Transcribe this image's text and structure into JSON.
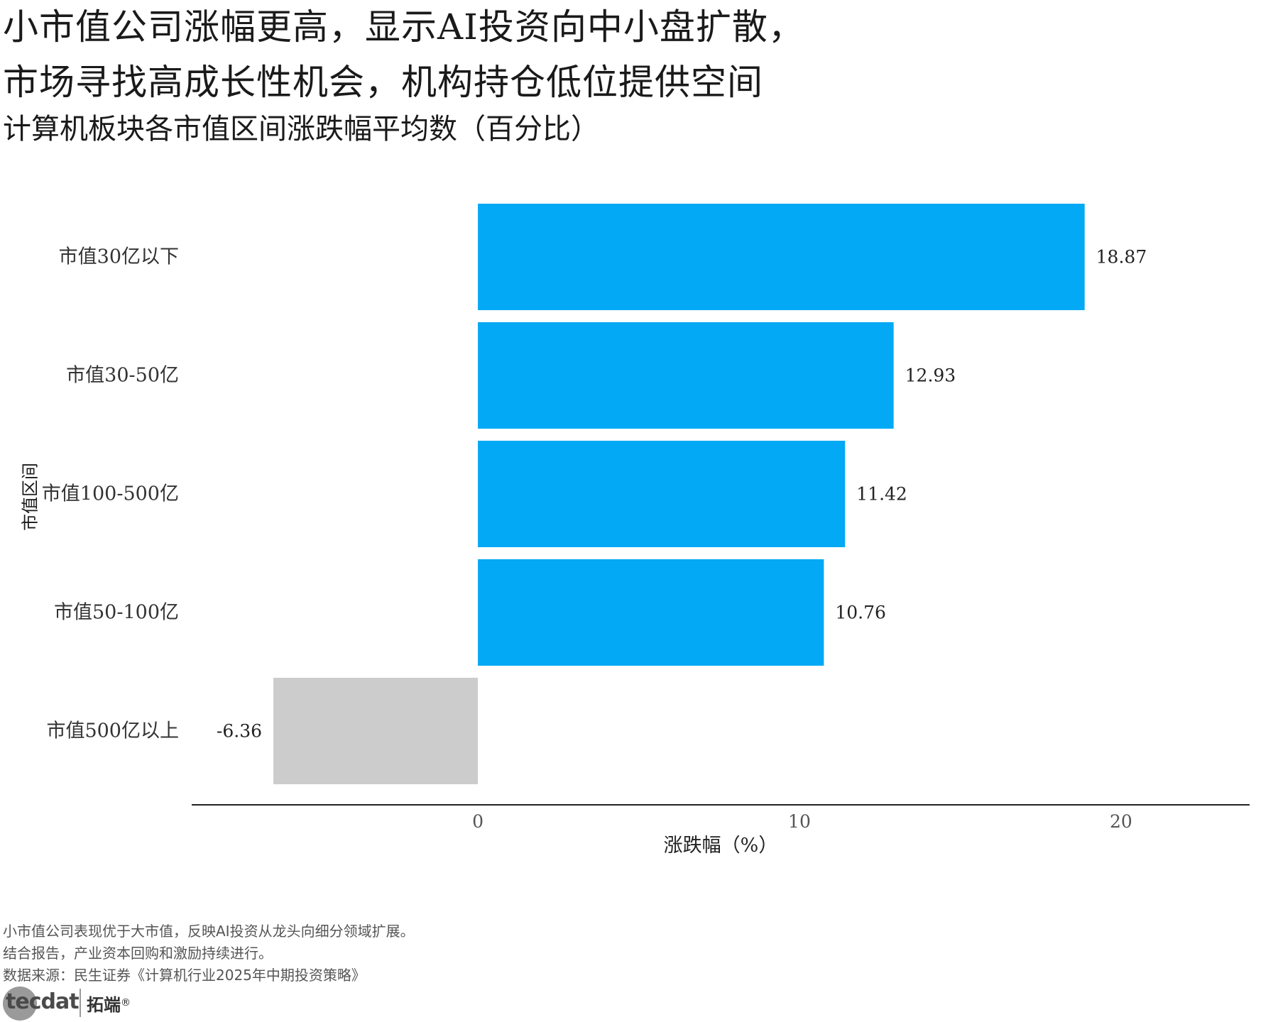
{
  "header": {
    "title_line_1": "小市值公司涨幅更高，显示AI投资向中小盘扩散，",
    "title_line_2": "市场寻找高成长性机会，机构持仓低位提供空间",
    "subtitle": "计算机板块各市值区间涨跌幅平均数（百分比）"
  },
  "chart_data": {
    "type": "bar",
    "orientation": "horizontal",
    "title": "计算机板块各市值区间涨跌幅平均数（百分比）",
    "categories": [
      "市值30亿以下",
      "市值30-50亿",
      "市值100-500亿",
      "市值50-100亿",
      "市值500亿以上"
    ],
    "values": [
      18.87,
      12.93,
      11.42,
      10.76,
      -6.36
    ],
    "value_labels": [
      "18.87",
      "12.93",
      "11.42",
      "10.76",
      "-6.36"
    ],
    "xlabel": "涨跌幅（%）",
    "ylabel": "市值区间",
    "xlim": [
      -8.9,
      24
    ],
    "xticks": [
      0,
      10,
      20
    ],
    "xtick_labels": [
      "0",
      "10",
      "20"
    ],
    "grid": false,
    "legend": "none",
    "colors": {
      "positive": "#03a9f4",
      "negative": "#cccccc",
      "axis": "#222222",
      "label": "#333333"
    }
  },
  "footer": {
    "caption_1": "小市值公司表现优于大市值，反映AI投资从龙头向细分领域扩展。",
    "caption_2": "结合报告，产业资本回购和激励持续进行。",
    "caption_3": "数据来源：民生证券《计算机行业2025年中期投资策略》",
    "logo_latin": "tecdat",
    "logo_cn": "拓端",
    "logo_reg": "®"
  }
}
